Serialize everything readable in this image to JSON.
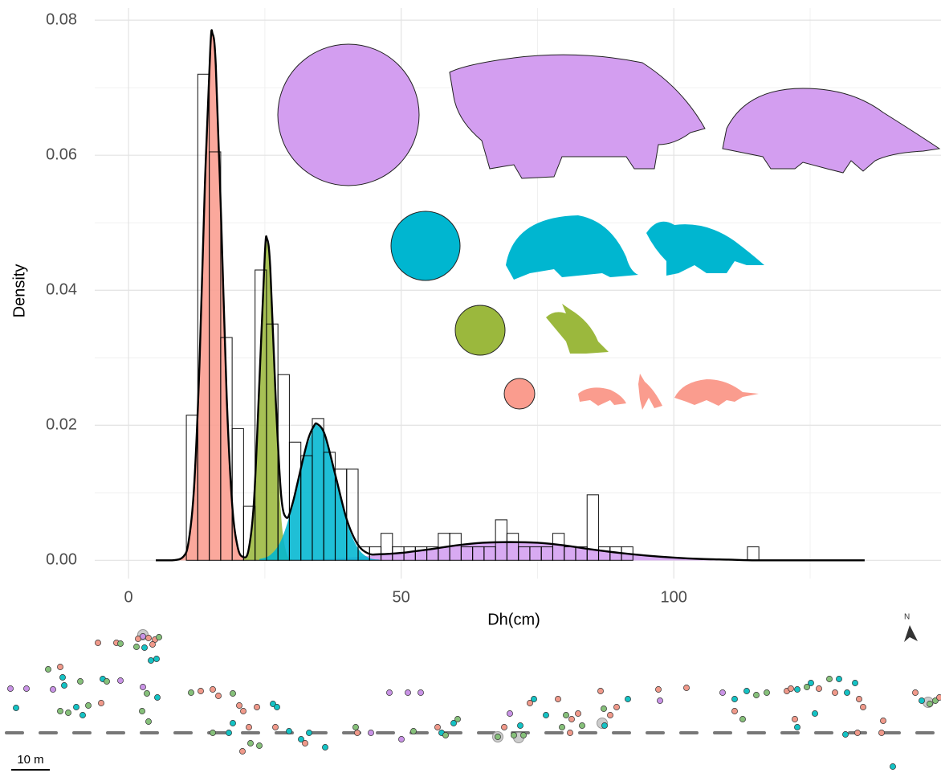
{
  "chart_data": {
    "type": "histogram",
    "x_label": "Dh(cm)",
    "y_label": "Density",
    "xlim": [
      -6.2,
      149
    ],
    "ylim": [
      -0.0027,
      0.0818
    ],
    "xticks": [
      0,
      50,
      100
    ],
    "yticks": [
      {
        "value": 0,
        "label": "0.00"
      },
      {
        "value": 0.02,
        "label": "0.02"
      },
      {
        "value": 0.04,
        "label": "0.04"
      },
      {
        "value": 0.06,
        "label": "0.06"
      },
      {
        "value": 0.08,
        "label": "0.08"
      }
    ],
    "x_minor_grid": [
      25,
      75,
      125
    ],
    "y_minor_grid": [
      0.01,
      0.03,
      0.05,
      0.07
    ],
    "grid": true,
    "bar_color": "#000000",
    "bins": [
      10.6,
      12.7,
      14.8,
      16.9,
      19,
      21.1,
      23.2,
      25.3,
      27.4,
      29.5,
      31.6,
      33.7,
      35.8,
      37.9,
      40,
      42.1,
      44.2,
      46.3,
      48.4,
      50.5,
      52.6,
      54.7,
      56.8,
      58.9,
      61,
      63.1,
      65.2,
      67.3,
      69.4,
      71.5,
      73.6,
      75.7,
      77.8,
      79.9,
      82,
      84.1,
      86.2,
      88.3,
      90.4,
      92.5,
      94.6,
      96.7,
      98.8,
      100.9,
      103,
      105.1,
      107.2,
      109.3,
      111.4,
      113.5,
      115.6
    ],
    "values": [
      0.0215,
      0.072,
      0.0605,
      0.033,
      0.0195,
      0.008,
      0.043,
      0.035,
      0.0275,
      0.0175,
      0.0155,
      0.021,
      0.016,
      0.0135,
      0.0135,
      0.002,
      0.002,
      0.004,
      0.002,
      0.002,
      0.002,
      0.002,
      0.004,
      0.004,
      0.002,
      0.002,
      0.002,
      0.006,
      0.004,
      0.002,
      0.002,
      0.002,
      0.004,
      0.002,
      0.002,
      0.0097,
      0.002,
      0.002,
      0.002,
      0,
      0,
      0,
      0,
      0,
      0,
      0,
      0,
      0,
      0,
      0.002
    ],
    "series": [
      {
        "color": "#d39ef0",
        "fill": true,
        "x": [
          25,
          30,
          35,
          40,
          45,
          50,
          55,
          60,
          65,
          70,
          75,
          80,
          85,
          90,
          95,
          100,
          105,
          110,
          115
        ],
        "values": [
          0,
          0.0001,
          0.0002,
          0.0004,
          0.0007,
          0.0011,
          0.0016,
          0.0022,
          0.0026,
          0.0027,
          0.0026,
          0.0022,
          0.0016,
          0.0011,
          0.0007,
          0.0004,
          0.0002,
          0.0001,
          0
        ]
      },
      {
        "color": "#fa9c8e",
        "fill": true,
        "x": [
          9,
          10,
          11,
          12,
          13,
          14,
          15,
          15.4,
          16,
          17,
          18,
          19,
          20,
          21,
          22
        ],
        "values": [
          0.0001,
          0.0005,
          0.0027,
          0.0106,
          0.0288,
          0.0556,
          0.0759,
          0.078,
          0.0733,
          0.0501,
          0.0242,
          0.0083,
          0.002,
          0.0003,
          0
        ]
      },
      {
        "color": "#9bb83d",
        "fill": true,
        "x": [
          21,
          22,
          23,
          24,
          25,
          25.4,
          26,
          27,
          28,
          29,
          30
        ],
        "values": [
          0.0002,
          0.0015,
          0.0086,
          0.0263,
          0.0449,
          0.047,
          0.0423,
          0.022,
          0.0064,
          0.001,
          0.0001
        ]
      },
      {
        "color": "#00b6d0",
        "fill": true,
        "x": [
          24,
          26,
          28,
          30,
          32,
          34,
          34.6,
          36,
          38,
          40,
          42,
          44,
          46
        ],
        "values": [
          0.0002,
          0.0008,
          0.003,
          0.008,
          0.0149,
          0.0197,
          0.02,
          0.0184,
          0.0121,
          0.0057,
          0.0019,
          0.0004,
          0.0001
        ]
      },
      {
        "color": "#000000",
        "fill": false,
        "x": [
          5,
          8,
          10,
          11,
          12,
          13,
          14,
          15,
          15.4,
          16,
          17,
          18,
          19,
          20,
          21,
          22,
          23,
          24,
          25,
          25.4,
          26,
          27,
          28,
          29,
          30,
          31,
          32,
          33,
          34,
          34.6,
          36,
          38,
          40,
          42,
          44,
          46,
          50,
          55,
          60,
          65,
          70,
          75,
          80,
          85,
          90,
          95,
          100,
          105,
          110,
          115,
          120,
          125,
          135
        ],
        "values": [
          0,
          0,
          0.0005,
          0.0027,
          0.0106,
          0.0288,
          0.0556,
          0.0759,
          0.078,
          0.0733,
          0.0501,
          0.0242,
          0.0083,
          0.002,
          0.0005,
          0.0015,
          0.0087,
          0.0265,
          0.0454,
          0.0476,
          0.0432,
          0.0237,
          0.0095,
          0.0063,
          0.0082,
          0.0115,
          0.015,
          0.0181,
          0.0199,
          0.0202,
          0.0186,
          0.0124,
          0.0061,
          0.0024,
          0.001,
          0.0009,
          0.0011,
          0.0016,
          0.0022,
          0.0026,
          0.0027,
          0.0026,
          0.0022,
          0.0016,
          0.0011,
          0.0007,
          0.0004,
          0.0002,
          0.0001,
          0,
          0,
          0,
          0
        ]
      }
    ]
  },
  "map": {
    "scale_label": "10 m",
    "north_label": "N"
  }
}
